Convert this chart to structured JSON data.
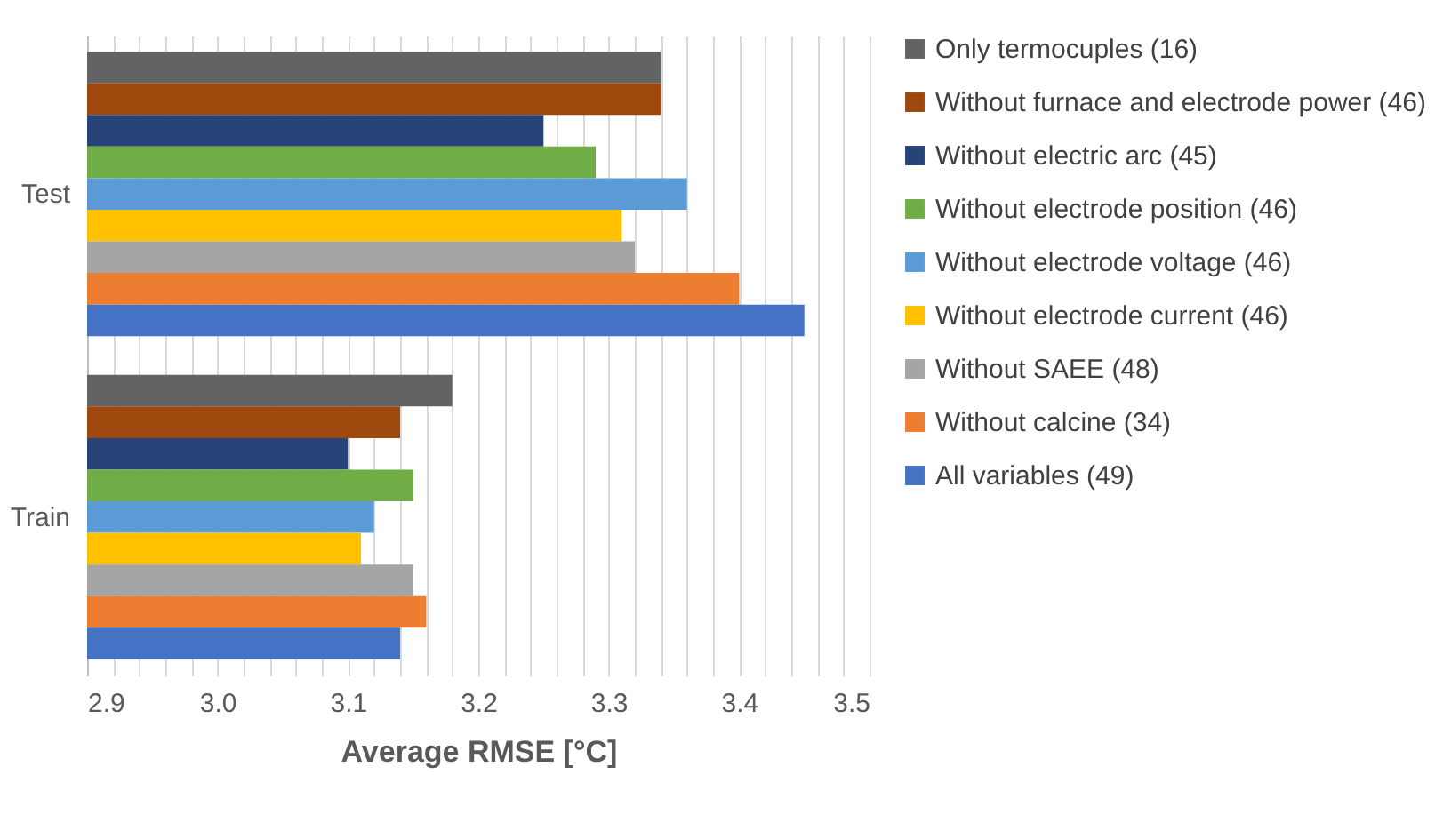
{
  "chart_data": {
    "type": "bar",
    "orientation": "horizontal",
    "xlabel": "Average RMSE [°C]",
    "categories": [
      "Test",
      "Train"
    ],
    "series": [
      {
        "name": "Only termocuples (16)",
        "color": "#636363",
        "values": [
          3.34,
          3.18
        ]
      },
      {
        "name": "Without furnace and electrode power (46)",
        "color": "#9e480e",
        "values": [
          3.34,
          3.14
        ]
      },
      {
        "name": "Without electric arc (45)",
        "color": "#264478",
        "values": [
          3.25,
          3.1
        ]
      },
      {
        "name": "Without electrode position (46)",
        "color": "#70ad47",
        "values": [
          3.29,
          3.15
        ]
      },
      {
        "name": "Without electrode voltage (46)",
        "color": "#5b9bd5",
        "values": [
          3.36,
          3.12
        ]
      },
      {
        "name": "Without electrode current (46)",
        "color": "#ffc000",
        "values": [
          3.31,
          3.11
        ]
      },
      {
        "name": "Without SAEE (48)",
        "color": "#a5a5a5",
        "values": [
          3.32,
          3.15
        ]
      },
      {
        "name": "Without calcine (34)",
        "color": "#ed7d31",
        "values": [
          3.4,
          3.16
        ]
      },
      {
        "name": "All variables (49)",
        "color": "#4472c4",
        "values": [
          3.45,
          3.14
        ]
      }
    ],
    "xlim": [
      2.9,
      3.5
    ],
    "xticks": [
      {
        "value": 2.9,
        "label": "2.9"
      },
      {
        "value": 2.92,
        "label": null
      },
      {
        "value": 2.94,
        "label": null
      },
      {
        "value": 2.96,
        "label": null
      },
      {
        "value": 2.98,
        "label": null
      },
      {
        "value": 3.0,
        "label": "3.0"
      },
      {
        "value": 3.02,
        "label": null
      },
      {
        "value": 3.04,
        "label": null
      },
      {
        "value": 3.06,
        "label": null
      },
      {
        "value": 3.08,
        "label": null
      },
      {
        "value": 3.1,
        "label": "3.1"
      },
      {
        "value": 3.12,
        "label": null
      },
      {
        "value": 3.14,
        "label": null
      },
      {
        "value": 3.16,
        "label": null
      },
      {
        "value": 3.18,
        "label": null
      },
      {
        "value": 3.2,
        "label": "3.2"
      },
      {
        "value": 3.22,
        "label": null
      },
      {
        "value": 3.24,
        "label": null
      },
      {
        "value": 3.26,
        "label": null
      },
      {
        "value": 3.28,
        "label": null
      },
      {
        "value": 3.3,
        "label": "3.3"
      },
      {
        "value": 3.32,
        "label": null
      },
      {
        "value": 3.34,
        "label": null
      },
      {
        "value": 3.36,
        "label": null
      },
      {
        "value": 3.38,
        "label": null
      },
      {
        "value": 3.4,
        "label": "3.4"
      },
      {
        "value": 3.42,
        "label": null
      },
      {
        "value": 3.44,
        "label": null
      },
      {
        "value": 3.46,
        "label": null
      },
      {
        "value": 3.48,
        "label": null
      },
      {
        "value": 3.5,
        "label": "3.5"
      }
    ],
    "grid": "x",
    "legend": "right"
  }
}
